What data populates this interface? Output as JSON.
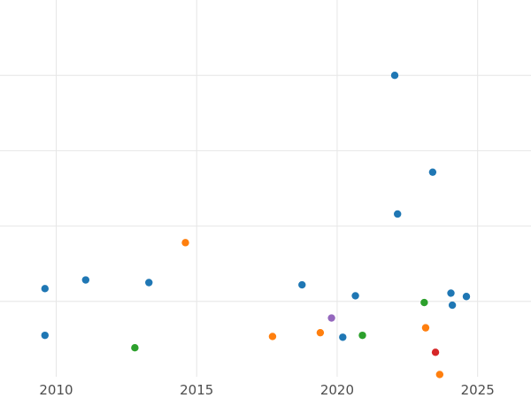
{
  "chart_data": {
    "type": "scatter",
    "title": "",
    "xlabel": "",
    "ylabel": "",
    "xlim": [
      2008.0,
      2026.9
    ],
    "ylim": [
      0.0,
      1.0
    ],
    "x_ticks": [
      2010,
      2015,
      2020,
      2025
    ],
    "x_tick_labels": [
      "2010",
      "2015",
      "2020",
      "2025"
    ],
    "y_gridlines": [
      0.2,
      0.4,
      0.6,
      0.8
    ],
    "grid": true,
    "legend": "none",
    "series": [
      {
        "color": "#1f77b4",
        "points": [
          {
            "x": 2009.6,
            "y": 0.234
          },
          {
            "x": 2009.6,
            "y": 0.11
          },
          {
            "x": 2011.05,
            "y": 0.257
          },
          {
            "x": 2013.3,
            "y": 0.25
          },
          {
            "x": 2018.75,
            "y": 0.244
          },
          {
            "x": 2020.2,
            "y": 0.105
          },
          {
            "x": 2020.65,
            "y": 0.215
          },
          {
            "x": 2022.05,
            "y": 0.8
          },
          {
            "x": 2022.15,
            "y": 0.432
          },
          {
            "x": 2023.4,
            "y": 0.543
          },
          {
            "x": 2024.05,
            "y": 0.222
          },
          {
            "x": 2024.1,
            "y": 0.19
          },
          {
            "x": 2024.6,
            "y": 0.213
          }
        ]
      },
      {
        "color": "#ff7f0e",
        "points": [
          {
            "x": 2014.6,
            "y": 0.356
          },
          {
            "x": 2017.7,
            "y": 0.107
          },
          {
            "x": 2019.4,
            "y": 0.117
          },
          {
            "x": 2023.15,
            "y": 0.13
          },
          {
            "x": 2023.65,
            "y": 0.006
          }
        ]
      },
      {
        "color": "#2ca02c",
        "points": [
          {
            "x": 2012.8,
            "y": 0.077
          },
          {
            "x": 2020.9,
            "y": 0.11
          },
          {
            "x": 2023.1,
            "y": 0.197
          }
        ]
      },
      {
        "color": "#d62728",
        "points": [
          {
            "x": 2023.5,
            "y": 0.065
          }
        ]
      },
      {
        "color": "#9467bd",
        "points": [
          {
            "x": 2019.8,
            "y": 0.156
          }
        ]
      }
    ]
  }
}
